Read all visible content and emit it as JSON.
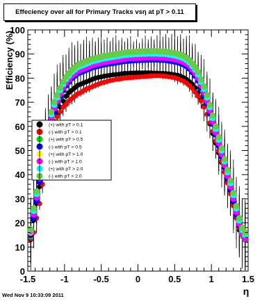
{
  "title": "Effeciency over all for Primary Tracks vsη at pT > 0.11",
  "footer": "Wed Nov  9 10:33:09 2011",
  "chart_data": {
    "type": "scatter",
    "title": "Effeciency over all for Primary Tracks vsη at pT > 0.11",
    "xlabel": "η",
    "ylabel": "Efficiency (%)",
    "xlim": [
      -1.5,
      1.5
    ],
    "ylim": [
      0,
      100
    ],
    "x_ticks": [
      -1.5,
      -1,
      -0.5,
      0,
      0.5,
      1,
      1.5
    ],
    "x_tick_labels": [
      "-1.5",
      "-1",
      "-0.5",
      "0",
      "0.5",
      "1",
      "1.5"
    ],
    "y_ticks": [
      0,
      10,
      20,
      30,
      40,
      50,
      60,
      70,
      80,
      90,
      100
    ],
    "y_tick_labels": [
      "0",
      "10",
      "20",
      "30",
      "40",
      "50",
      "60",
      "70",
      "80",
      "90",
      "100"
    ],
    "grid": false,
    "legend_position": "center-left",
    "x": [
      -1.46,
      -1.42,
      -1.38,
      -1.34,
      -1.3,
      -1.26,
      -1.22,
      -1.18,
      -1.14,
      -1.1,
      -1.06,
      -1.02,
      -0.98,
      -0.94,
      -0.9,
      -0.86,
      -0.82,
      -0.78,
      -0.74,
      -0.7,
      -0.66,
      -0.62,
      -0.58,
      -0.54,
      -0.5,
      -0.46,
      -0.42,
      -0.38,
      -0.34,
      -0.3,
      -0.26,
      -0.22,
      -0.18,
      -0.14,
      -0.1,
      -0.06,
      -0.02,
      0.02,
      0.06,
      0.1,
      0.14,
      0.18,
      0.22,
      0.26,
      0.3,
      0.34,
      0.38,
      0.42,
      0.46,
      0.5,
      0.54,
      0.58,
      0.62,
      0.66,
      0.7,
      0.74,
      0.78,
      0.82,
      0.86,
      0.9,
      0.94,
      0.98,
      1.02,
      1.06,
      1.1,
      1.14,
      1.18,
      1.22,
      1.26,
      1.3,
      1.34,
      1.38,
      1.42,
      1.46
    ],
    "series": [
      {
        "name": "(+) with pT > 0.1",
        "color": "#000000",
        "size": 1.0,
        "values": [
          13.0,
          21.0,
          28.0,
          35.0,
          42.0,
          48.0,
          53.0,
          58.0,
          62.0,
          65.0,
          68.0,
          70.5,
          72.5,
          74.0,
          75.0,
          76.0,
          77.0,
          77.5,
          78.0,
          78.5,
          79.0,
          79.5,
          80.0,
          80.3,
          80.5,
          80.8,
          81.0,
          81.2,
          81.4,
          81.5,
          81.6,
          81.8,
          82.0,
          82.0,
          82.1,
          82.1,
          82.2,
          82.2,
          82.2,
          82.2,
          82.2,
          82.2,
          82.1,
          82.1,
          82.0,
          82.0,
          81.9,
          81.8,
          81.6,
          81.4,
          81.2,
          80.8,
          80.2,
          79.5,
          78.5,
          77.5,
          76.0,
          74.0,
          71.5,
          68.5,
          65.0,
          61.0,
          57.0,
          53.0,
          49.0,
          45.0,
          41.0,
          37.0,
          33.0,
          28.0,
          22.0,
          17.0,
          14.5,
          13.0
        ]
      },
      {
        "name": "(-) with pT > 0.1",
        "color": "#ff0000",
        "size": 1.0,
        "values": [
          13.5,
          16.0,
          22.0,
          28.0,
          36.0,
          44.0,
          51.0,
          57.0,
          61.0,
          64.0,
          66.0,
          68.0,
          69.0,
          70.5,
          71.5,
          72.5,
          73.5,
          74.0,
          74.8,
          75.5,
          76.0,
          76.5,
          77.0,
          77.5,
          78.0,
          78.3,
          78.6,
          79.0,
          79.2,
          79.5,
          79.6,
          79.8,
          80.0,
          80.1,
          80.2,
          80.3,
          80.4,
          80.5,
          80.6,
          80.7,
          80.8,
          80.9,
          81.0,
          81.0,
          81.0,
          80.9,
          80.8,
          80.6,
          80.4,
          80.2,
          79.8,
          79.3,
          78.8,
          78.0,
          77.0,
          75.8,
          74.2,
          72.5,
          70.5,
          68.0,
          65.0,
          61.5,
          58.0,
          54.0,
          50.0,
          45.5,
          41.0,
          36.5,
          32.0,
          27.0,
          22.0,
          18.0,
          15.0,
          13.5
        ]
      },
      {
        "name": "(+) with pT > 0.5",
        "color": "#00dd00",
        "size": 1.25,
        "values": [
          14.5,
          23.0,
          30.0,
          38.0,
          46.0,
          53.0,
          58.0,
          63.0,
          67.0,
          70.0,
          73.0,
          75.5,
          77.5,
          79.0,
          80.5,
          81.5,
          82.5,
          83.0,
          83.5,
          84.0,
          84.5,
          85.0,
          85.3,
          85.6,
          85.9,
          86.2,
          86.4,
          86.6,
          86.8,
          87.0,
          87.2,
          87.4,
          87.6,
          87.7,
          87.8,
          87.9,
          88.0,
          88.0,
          88.1,
          88.1,
          88.2,
          88.2,
          88.2,
          88.2,
          88.1,
          88.1,
          88.0,
          87.8,
          87.6,
          87.4,
          87.1,
          86.7,
          86.2,
          85.5,
          84.5,
          83.0,
          81.5,
          79.5,
          76.5,
          73.5,
          70.0,
          66.0,
          61.5,
          57.0,
          52.5,
          48.0,
          43.5,
          39.0,
          34.5,
          29.5,
          24.0,
          19.0,
          15.0,
          13.0
        ]
      },
      {
        "name": "(-) with pT > 0.5",
        "color": "#0000ff",
        "size": 1.25,
        "values": [
          15.0,
          22.0,
          29.0,
          37.0,
          45.0,
          52.0,
          57.0,
          62.0,
          66.0,
          69.5,
          72.5,
          75.0,
          77.0,
          78.5,
          80.0,
          81.0,
          82.0,
          82.5,
          83.0,
          83.5,
          84.0,
          84.5,
          84.8,
          85.1,
          85.4,
          85.7,
          85.9,
          86.1,
          86.3,
          86.5,
          86.7,
          86.9,
          87.1,
          87.2,
          87.3,
          87.4,
          87.5,
          87.5,
          87.6,
          87.6,
          87.7,
          87.7,
          87.7,
          87.7,
          87.6,
          87.6,
          87.5,
          87.3,
          87.1,
          86.9,
          86.6,
          86.2,
          85.7,
          85.0,
          84.0,
          82.5,
          81.0,
          79.0,
          76.0,
          73.0,
          69.5,
          65.5,
          61.0,
          56.5,
          52.0,
          47.5,
          43.0,
          38.5,
          34.0,
          29.0,
          23.5,
          19.0,
          15.5,
          13.5
        ]
      },
      {
        "name": "(+) with pT > 1.0",
        "color": "#ffff00",
        "size": 1.25,
        "values": [
          16.0,
          24.0,
          31.0,
          39.0,
          47.0,
          54.0,
          59.0,
          64.0,
          68.0,
          71.0,
          74.0,
          76.5,
          78.5,
          80.0,
          81.5,
          82.5,
          83.5,
          84.0,
          84.5,
          85.0,
          85.5,
          86.0,
          86.3,
          86.6,
          86.9,
          87.2,
          87.4,
          87.6,
          87.8,
          88.0,
          88.2,
          88.4,
          88.6,
          88.7,
          88.8,
          88.9,
          89.0,
          89.0,
          89.1,
          89.1,
          89.2,
          89.2,
          89.2,
          89.2,
          89.1,
          89.1,
          89.0,
          88.8,
          88.6,
          88.4,
          88.1,
          87.7,
          87.2,
          86.5,
          85.5,
          84.0,
          82.5,
          80.5,
          77.5,
          74.5,
          71.0,
          67.0,
          62.5,
          58.0,
          53.5,
          49.0,
          44.5,
          40.0,
          35.5,
          30.5,
          25.0,
          20.0,
          16.0,
          14.0
        ]
      },
      {
        "name": "(-) with pT > 1.0",
        "color": "#ff00ff",
        "size": 1.25,
        "values": [
          16.5,
          23.5,
          30.5,
          38.5,
          46.5,
          53.5,
          58.5,
          63.5,
          67.5,
          70.5,
          73.5,
          76.0,
          78.0,
          79.5,
          81.0,
          82.0,
          83.0,
          83.5,
          84.0,
          84.5,
          85.0,
          85.5,
          85.8,
          86.1,
          86.4,
          86.7,
          86.9,
          87.1,
          87.3,
          87.5,
          87.7,
          87.9,
          88.1,
          88.2,
          88.3,
          88.4,
          88.5,
          88.5,
          88.6,
          88.6,
          88.7,
          88.7,
          88.7,
          88.7,
          88.6,
          88.6,
          88.5,
          88.3,
          88.1,
          87.9,
          87.6,
          87.2,
          86.7,
          86.0,
          85.0,
          83.5,
          82.0,
          80.0,
          77.0,
          74.0,
          70.5,
          66.5,
          62.0,
          57.5,
          53.0,
          48.5,
          44.0,
          39.5,
          35.0,
          30.0,
          24.5,
          19.5,
          15.5,
          13.5
        ]
      },
      {
        "name": "(+) with pT > 2.0",
        "color": "#00ffff",
        "size": 1.25,
        "values": [
          17.0,
          25.0,
          32.0,
          40.0,
          48.0,
          55.0,
          60.0,
          65.0,
          69.0,
          72.0,
          75.0,
          77.5,
          79.5,
          81.0,
          82.5,
          83.5,
          84.5,
          85.0,
          85.5,
          86.0,
          86.5,
          87.0,
          87.3,
          87.6,
          87.9,
          88.2,
          88.4,
          88.6,
          88.8,
          89.0,
          89.2,
          89.4,
          89.6,
          89.7,
          89.8,
          89.9,
          90.0,
          90.0,
          90.1,
          90.1,
          90.2,
          90.2,
          90.2,
          90.2,
          90.1,
          90.1,
          90.0,
          89.8,
          89.6,
          89.4,
          89.1,
          88.7,
          88.2,
          87.5,
          86.5,
          85.0,
          83.5,
          81.5,
          78.5,
          75.5,
          72.0,
          68.0,
          63.5,
          59.0,
          54.5,
          50.0,
          45.5,
          41.0,
          36.5,
          31.5,
          26.0,
          21.0,
          17.0,
          15.0
        ]
      },
      {
        "name": "(-) with pT > 2.0",
        "color": "#66cc44",
        "size": 1.25,
        "values": [
          17.5,
          26.0,
          33.0,
          41.0,
          49.0,
          56.0,
          61.0,
          66.0,
          70.0,
          73.0,
          76.0,
          78.5,
          80.5,
          82.0,
          83.5,
          84.5,
          85.5,
          86.0,
          86.5,
          87.0,
          87.5,
          88.0,
          88.3,
          88.6,
          88.9,
          89.2,
          89.4,
          89.6,
          89.8,
          90.0,
          90.2,
          90.4,
          90.6,
          90.7,
          90.8,
          90.9,
          91.0,
          91.0,
          91.1,
          91.1,
          91.2,
          91.2,
          91.2,
          91.2,
          91.1,
          91.1,
          91.0,
          90.8,
          90.6,
          90.4,
          90.1,
          89.7,
          89.2,
          88.5,
          87.5,
          86.0,
          84.5,
          82.5,
          79.5,
          76.5,
          73.0,
          69.0,
          64.5,
          60.0,
          55.5,
          51.0,
          46.5,
          42.0,
          37.5,
          32.5,
          27.0,
          22.0,
          18.0,
          16.0
        ]
      }
    ]
  }
}
